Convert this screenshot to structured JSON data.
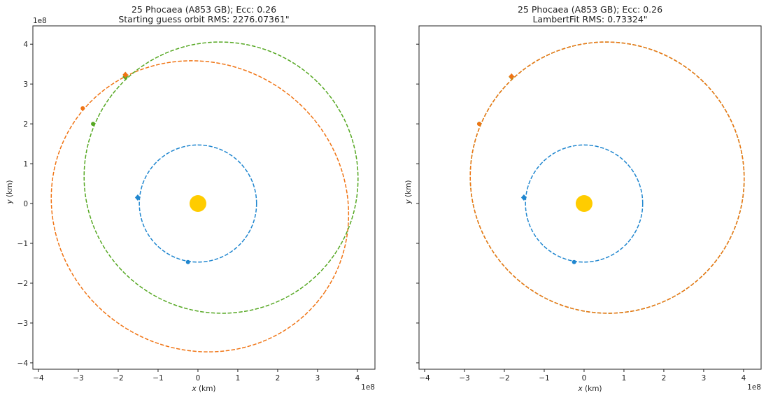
{
  "chart_data": [
    {
      "type": "scatter",
      "title_line1": "25 Phocaea (A853 GB); Ecc: 0.26",
      "title_line2": "Starting guess orbit RMS: 2276.07361\"",
      "xlabel_var": "x",
      "xlabel_unit": " (km)",
      "ylabel_var": "y",
      "ylabel_unit": " (km)",
      "offset_label": "1e8",
      "xlim": [
        -4.14,
        4.44
      ],
      "ylim": [
        -4.16,
        4.46
      ],
      "xticks": [
        -4,
        -3,
        -2,
        -1,
        0,
        1,
        2,
        3,
        4
      ],
      "yticks": [
        -4,
        -3,
        -2,
        -1,
        0,
        1,
        2,
        3,
        4
      ],
      "xtick_labels": [
        "−4",
        "−3",
        "−2",
        "−1",
        "0",
        "1",
        "2",
        "3",
        "4"
      ],
      "ytick_labels": [
        "−4",
        "−3",
        "−2",
        "−1",
        "0",
        "1",
        "2",
        "3",
        "4"
      ],
      "show_ytick_labels": true,
      "sun": {
        "x": 0,
        "y": 0,
        "color": "#ffcc00"
      },
      "orbits": [
        {
          "name": "earth",
          "color": "#1f86cf",
          "cx": 0,
          "cy": 0,
          "a": 1.47,
          "b": 1.47,
          "angle_deg": 0
        },
        {
          "name": "guess",
          "color": "#f07414",
          "cx": 0.05,
          "cy": -0.07,
          "a": 3.8,
          "b": 3.58,
          "angle_deg": -35
        },
        {
          "name": "true",
          "color": "#56a823",
          "cx": 0.58,
          "cy": 0.65,
          "a": 3.44,
          "b": 3.4,
          "angle_deg": -20
        }
      ],
      "markers": [
        {
          "color": "#1f86cf",
          "shape": "diamond",
          "x": -1.51,
          "y": 0.15
        },
        {
          "color": "#1f86cf",
          "shape": "dot",
          "x": -0.25,
          "y": -1.47
        },
        {
          "color": "#56a823",
          "shape": "diamond",
          "x": -1.82,
          "y": 3.18
        },
        {
          "color": "#56a823",
          "shape": "dot",
          "x": -2.63,
          "y": 2.0
        },
        {
          "color": "#f07414",
          "shape": "diamond",
          "x": -1.82,
          "y": 3.23
        },
        {
          "color": "#f07414",
          "shape": "dot",
          "x": -2.89,
          "y": 2.39
        }
      ]
    },
    {
      "type": "scatter",
      "title_line1": "25 Phocaea (A853 GB); Ecc: 0.26",
      "title_line2": "LambertFit RMS: 0.73324\"",
      "xlabel_var": "x",
      "xlabel_unit": " (km)",
      "ylabel_var": "y",
      "ylabel_unit": " (km)",
      "offset_label": "1e8",
      "xlim": [
        -4.14,
        4.44
      ],
      "ylim": [
        -4.16,
        4.46
      ],
      "xticks": [
        -4,
        -3,
        -2,
        -1,
        0,
        1,
        2,
        3,
        4
      ],
      "yticks": [
        -4,
        -3,
        -2,
        -1,
        0,
        1,
        2,
        3,
        4
      ],
      "xtick_labels": [
        "−4",
        "−3",
        "−2",
        "−1",
        "0",
        "1",
        "2",
        "3",
        "4"
      ],
      "ytick_labels": [],
      "show_ytick_labels": false,
      "sun": {
        "x": 0,
        "y": 0,
        "color": "#ffcc00"
      },
      "orbits": [
        {
          "name": "earth",
          "color": "#1f86cf",
          "cx": 0,
          "cy": 0,
          "a": 1.47,
          "b": 1.47,
          "angle_deg": 0
        },
        {
          "name": "true",
          "color": "#56a823",
          "cx": 0.58,
          "cy": 0.65,
          "a": 3.44,
          "b": 3.4,
          "angle_deg": -20
        },
        {
          "name": "fit",
          "color": "#f07414",
          "cx": 0.58,
          "cy": 0.65,
          "a": 3.44,
          "b": 3.4,
          "angle_deg": -20
        }
      ],
      "markers": [
        {
          "color": "#1f86cf",
          "shape": "diamond",
          "x": -1.51,
          "y": 0.15
        },
        {
          "color": "#1f86cf",
          "shape": "dot",
          "x": -0.25,
          "y": -1.47
        },
        {
          "color": "#56a823",
          "shape": "diamond",
          "x": -1.82,
          "y": 3.18
        },
        {
          "color": "#56a823",
          "shape": "dot",
          "x": -2.63,
          "y": 2.0
        },
        {
          "color": "#f07414",
          "shape": "diamond",
          "x": -1.82,
          "y": 3.19
        },
        {
          "color": "#f07414",
          "shape": "dot",
          "x": -2.63,
          "y": 2.0
        }
      ]
    }
  ]
}
